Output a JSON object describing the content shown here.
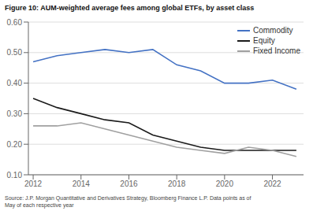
{
  "chart_data": {
    "type": "line",
    "title": "Figure 10: AUM-weighted average fees among global ETFs, by asset class",
    "annotations": [
      "Source: J.P. Morgan Quantitative and Derivatives Strategy, Bloomberg Finance L.P. Data points as of\nMay of each respective year"
    ],
    "x": [
      2012,
      2013,
      2014,
      2015,
      2016,
      2017,
      2018,
      2019,
      2020,
      2021,
      2022,
      2023
    ],
    "series": [
      {
        "name": "Commodity",
        "color": "#4472C4",
        "values": [
          0.47,
          0.49,
          0.5,
          0.51,
          0.5,
          0.51,
          0.46,
          0.44,
          0.4,
          0.4,
          0.41,
          0.38
        ]
      },
      {
        "name": "Equity",
        "color": "#1a1a1a",
        "values": [
          0.35,
          0.32,
          0.3,
          0.28,
          0.27,
          0.23,
          0.21,
          0.19,
          0.18,
          0.18,
          0.18,
          0.18
        ]
      },
      {
        "name": "Fixed Income",
        "color": "#a0a0a0",
        "values": [
          0.26,
          0.26,
          0.27,
          0.25,
          0.23,
          0.21,
          0.19,
          0.18,
          0.17,
          0.19,
          0.18,
          0.16
        ]
      }
    ],
    "xlim": [
      2011.8,
      2023.3
    ],
    "xticks": [
      2012,
      2014,
      2016,
      2018,
      2020,
      2022
    ],
    "ylim": [
      0.1,
      0.6
    ],
    "yticks": [
      {
        "value": 0.1,
        "label": "0.10"
      },
      {
        "value": 0.2,
        "label": "0.20"
      },
      {
        "value": 0.3,
        "label": "0.30"
      },
      {
        "value": 0.4,
        "label": "0.40"
      },
      {
        "value": 0.5,
        "label": "0.50"
      },
      {
        "value": 0.6,
        "label": "0.60"
      }
    ],
    "grid": true,
    "legend": "upper right"
  }
}
